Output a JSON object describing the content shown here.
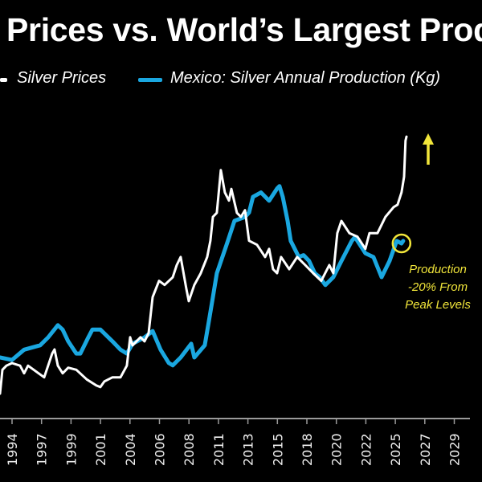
{
  "chart_data": {
    "type": "line",
    "title": "Prices vs. World’s Largest Prod",
    "xlabel": "",
    "ylabel": "",
    "grid": false,
    "legend_placement": "top",
    "x_tick_labels": [
      "1994",
      "1997",
      "1999",
      "2001",
      "2004",
      "2006",
      "2008",
      "2011",
      "2013",
      "2015",
      "2018",
      "2020",
      "2022",
      "2025",
      "2027",
      "2029"
    ],
    "xlim": [
      1993.05,
      2031.2
    ],
    "series": [
      {
        "name": "Silver Prices",
        "color": "#ffffff",
        "axis": "left",
        "ylim": [
          -0.75,
          81.5
        ],
        "points": [
          [
            1993.05,
            4.0
          ],
          [
            1993.24,
            8.7
          ],
          [
            1993.56,
            9.5
          ],
          [
            1994.0,
            10.0
          ],
          [
            1994.64,
            9.5
          ],
          [
            1994.96,
            8.0
          ],
          [
            1995.27,
            9.5
          ],
          [
            1996.1,
            8.0
          ],
          [
            1996.55,
            7.2
          ],
          [
            1997.18,
            11.9
          ],
          [
            1997.37,
            12.7
          ],
          [
            1997.63,
            9.5
          ],
          [
            1998.01,
            8.0
          ],
          [
            1998.45,
            9.1
          ],
          [
            1999.09,
            8.7
          ],
          [
            1999.92,
            6.8
          ],
          [
            2000.68,
            5.6
          ],
          [
            2001.0,
            5.3
          ],
          [
            2001.31,
            6.4
          ],
          [
            2001.95,
            7.2
          ],
          [
            2002.59,
            7.2
          ],
          [
            2003.09,
            9.5
          ],
          [
            2003.35,
            15.1
          ],
          [
            2003.54,
            13.5
          ],
          [
            2004.17,
            15.1
          ],
          [
            2004.49,
            14.3
          ],
          [
            2004.81,
            15.9
          ],
          [
            2005.13,
            23.0
          ],
          [
            2005.64,
            26.2
          ],
          [
            2006.08,
            25.4
          ],
          [
            2006.72,
            26.9
          ],
          [
            2007.04,
            29.3
          ],
          [
            2007.35,
            30.9
          ],
          [
            2007.8,
            24.6
          ],
          [
            2007.99,
            22.2
          ],
          [
            2008.43,
            25.4
          ],
          [
            2008.94,
            27.7
          ],
          [
            2009.45,
            30.9
          ],
          [
            2009.7,
            34.1
          ],
          [
            2009.9,
            38.8
          ],
          [
            2010.21,
            39.6
          ],
          [
            2010.53,
            48.0
          ],
          [
            2010.85,
            43.6
          ],
          [
            2011.17,
            42.0
          ],
          [
            2011.36,
            44.3
          ],
          [
            2011.8,
            39.6
          ],
          [
            2012.12,
            38.8
          ],
          [
            2012.44,
            40.1
          ],
          [
            2012.76,
            34.1
          ],
          [
            2013.39,
            33.3
          ],
          [
            2014.03,
            30.9
          ],
          [
            2014.35,
            32.5
          ],
          [
            2014.66,
            28.5
          ],
          [
            2014.98,
            27.7
          ],
          [
            2015.3,
            30.9
          ],
          [
            2015.94,
            28.5
          ],
          [
            2016.57,
            30.9
          ],
          [
            2017.21,
            29.3
          ],
          [
            2017.84,
            27.7
          ],
          [
            2018.48,
            26.2
          ],
          [
            2019.11,
            29.3
          ],
          [
            2019.43,
            27.7
          ],
          [
            2019.75,
            35.6
          ],
          [
            2020.07,
            38.0
          ],
          [
            2020.7,
            35.6
          ],
          [
            2021.34,
            34.9
          ],
          [
            2021.97,
            32.5
          ],
          [
            2022.29,
            35.6
          ],
          [
            2022.93,
            35.6
          ],
          [
            2023.56,
            38.8
          ],
          [
            2024.2,
            40.7
          ],
          [
            2024.52,
            41.2
          ],
          [
            2024.83,
            43.6
          ],
          [
            2025.03,
            46.7
          ],
          [
            2025.15,
            53.8
          ],
          [
            2025.22,
            54.6
          ]
        ]
      },
      {
        "name": "Mexico: Silver Annual Production (Kg)",
        "color": "#1aa7e0",
        "axis": "right",
        "ylim": [
          1170000,
          9700000
        ],
        "points": [
          [
            1993.05,
            2400000
          ],
          [
            1994.0,
            2350000
          ],
          [
            1994.96,
            2560000
          ],
          [
            1996.23,
            2650000
          ],
          [
            1996.86,
            2810000
          ],
          [
            1997.63,
            3060000
          ],
          [
            1998.01,
            2970000
          ],
          [
            1998.45,
            2730000
          ],
          [
            1999.09,
            2480000
          ],
          [
            1999.41,
            2480000
          ],
          [
            2000.04,
            2810000
          ],
          [
            2000.36,
            2970000
          ],
          [
            2001.0,
            2970000
          ],
          [
            2001.95,
            2730000
          ],
          [
            2002.59,
            2560000
          ],
          [
            2003.09,
            2480000
          ],
          [
            2003.54,
            2680000
          ],
          [
            2004.49,
            2810000
          ],
          [
            2005.13,
            2940000
          ],
          [
            2005.76,
            2560000
          ],
          [
            2006.4,
            2290000
          ],
          [
            2006.72,
            2240000
          ],
          [
            2007.35,
            2400000
          ],
          [
            2008.18,
            2680000
          ],
          [
            2008.43,
            2400000
          ],
          [
            2009.26,
            2650000
          ],
          [
            2009.58,
            3140000
          ],
          [
            2009.9,
            3630000
          ],
          [
            2010.21,
            4120000
          ],
          [
            2010.98,
            4700000
          ],
          [
            2011.61,
            5190000
          ],
          [
            2012.44,
            5270000
          ],
          [
            2012.76,
            5360000
          ],
          [
            2013.07,
            5680000
          ],
          [
            2013.71,
            5770000
          ],
          [
            2014.35,
            5600000
          ],
          [
            2014.98,
            5850000
          ],
          [
            2015.17,
            5900000
          ],
          [
            2015.43,
            5680000
          ],
          [
            2015.81,
            5190000
          ],
          [
            2016.06,
            4780000
          ],
          [
            2016.7,
            4450000
          ],
          [
            2017.08,
            4490000
          ],
          [
            2017.52,
            4370000
          ],
          [
            2017.97,
            4120000
          ],
          [
            2018.35,
            4040000
          ],
          [
            2018.8,
            3880000
          ],
          [
            2019.43,
            4040000
          ],
          [
            2020.07,
            4370000
          ],
          [
            2020.89,
            4780000
          ],
          [
            2021.15,
            4860000
          ],
          [
            2021.97,
            4530000
          ],
          [
            2022.61,
            4450000
          ],
          [
            2023.25,
            4040000
          ],
          [
            2023.88,
            4370000
          ],
          [
            2024.45,
            4780000
          ],
          [
            2024.83,
            4730000
          ],
          [
            2024.96,
            4780000
          ]
        ]
      }
    ],
    "annotations": {
      "text_lines": [
        "Production",
        "-20% From",
        "Peak Levels"
      ],
      "color": "#f2e63a",
      "highlight_point": [
        2024.83,
        4730000
      ],
      "arrow": "up-arrow"
    }
  }
}
